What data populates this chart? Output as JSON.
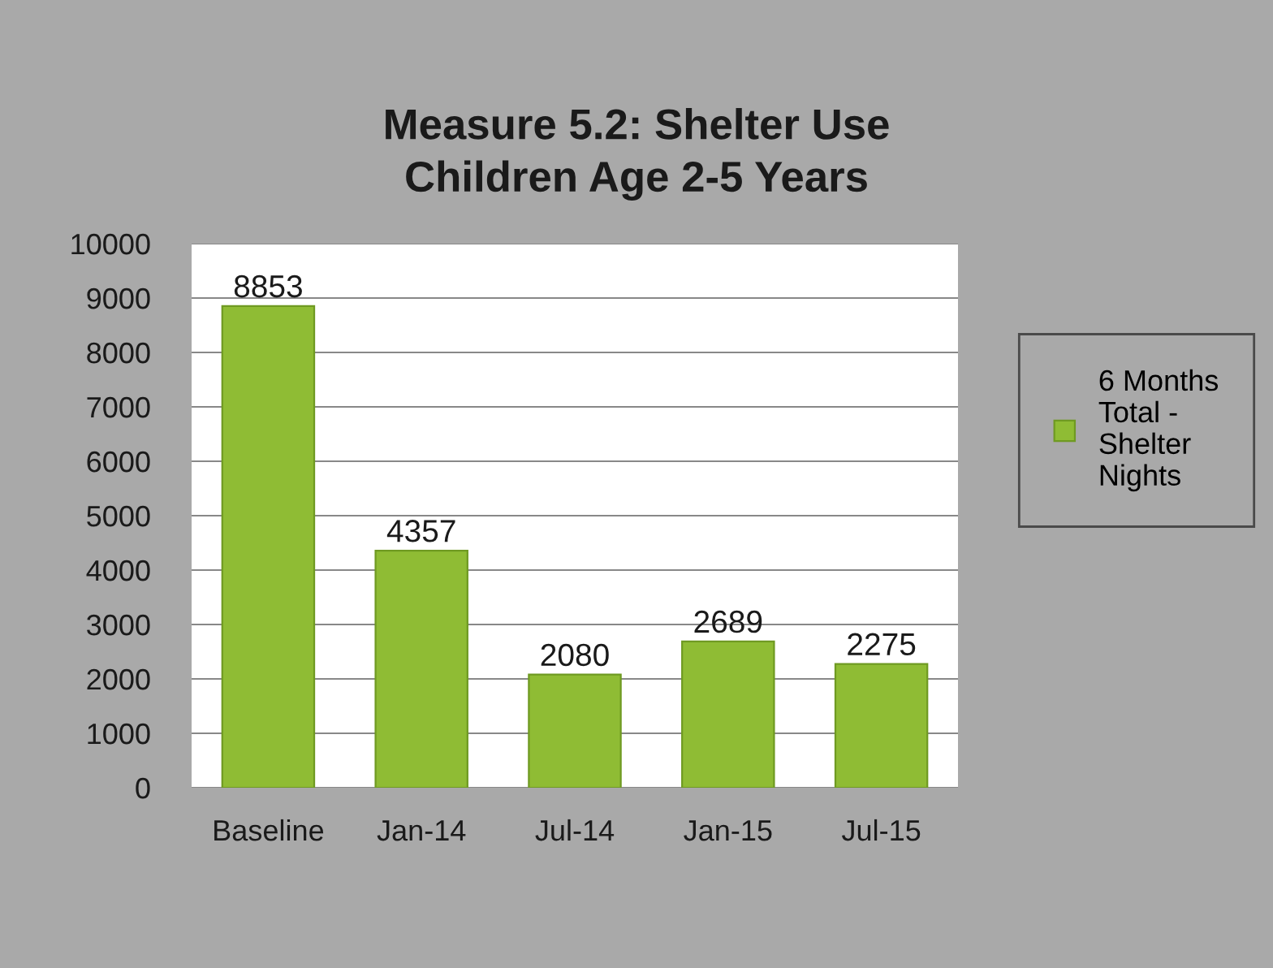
{
  "chart_data": {
    "type": "bar",
    "title": "Measure 5.2: Shelter Use\nChildren Age 2-5 Years",
    "categories": [
      "Baseline",
      "Jan-14",
      "Jul-14",
      "Jan-15",
      "Jul-15"
    ],
    "series": [
      {
        "name": "6 Months\nTotal -\nShelter\nNights",
        "color": "#8fbc34",
        "values": [
          8853,
          4357,
          2080,
          2689,
          2275
        ]
      }
    ],
    "ylim": [
      0,
      10000
    ],
    "yticks": [
      0,
      1000,
      2000,
      3000,
      4000,
      5000,
      6000,
      7000,
      8000,
      9000,
      10000
    ],
    "grid": "y",
    "legend": "right",
    "data_labels": true
  }
}
